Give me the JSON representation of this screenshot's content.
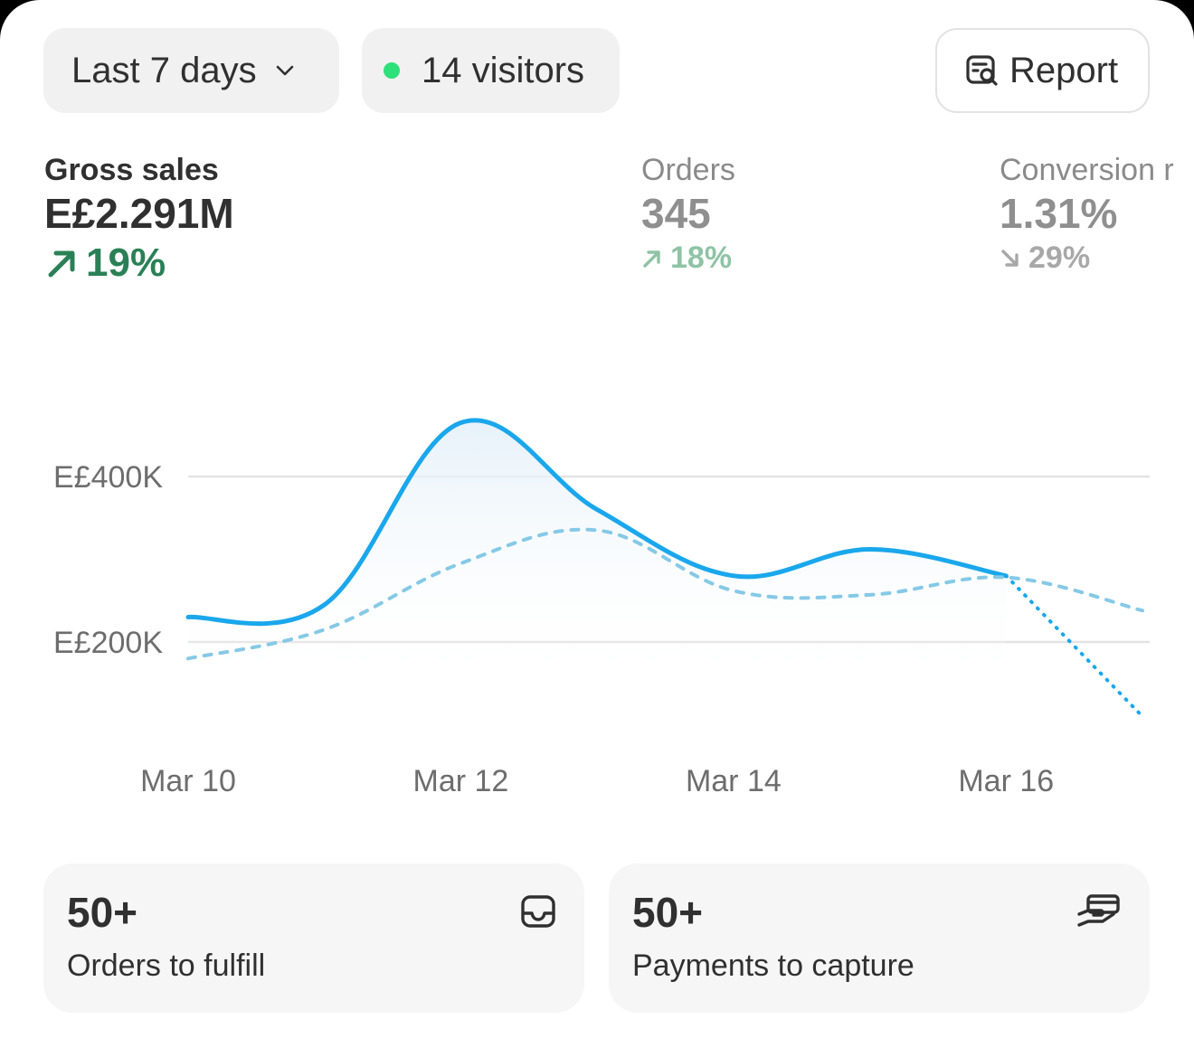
{
  "toolbar": {
    "date_range_label": "Last 7 days",
    "visitors_label": "14 visitors",
    "report_label": "Report",
    "live_dot_color": "#2ee07a"
  },
  "metrics": [
    {
      "label": "Gross sales",
      "value": "E£2.291M",
      "change": "19%",
      "direction": "up"
    },
    {
      "label": "Orders",
      "value": "345",
      "change": "18%",
      "direction": "up"
    },
    {
      "label": "Conversion r",
      "value": "1.31%",
      "change": "29%",
      "direction": "down"
    }
  ],
  "chart_data": {
    "type": "line",
    "x": [
      "Mar 10",
      "Mar 11",
      "Mar 12",
      "Mar 13",
      "Mar 14",
      "Mar 15",
      "Mar 16",
      "Mar 17"
    ],
    "x_tick_labels": [
      "Mar 10",
      "Mar 12",
      "Mar 14",
      "Mar 16"
    ],
    "y_tick_labels": [
      "E£400K",
      "E£200K"
    ],
    "y_ticks": [
      400000,
      200000
    ],
    "ylim": [
      50000,
      600000
    ],
    "grid": true,
    "series": [
      {
        "style": "solid",
        "color": "#1aa7ec",
        "values": [
          230000,
          245000,
          465000,
          360000,
          280000,
          312000,
          280000,
          null
        ]
      },
      {
        "style": "dotted-projection",
        "color": "#1aa7ec",
        "values": [
          null,
          null,
          null,
          null,
          null,
          null,
          280000,
          110000
        ]
      },
      {
        "style": "dashed-comparison",
        "color": "#86c9e6",
        "values": [
          180000,
          215000,
          295000,
          335000,
          262000,
          257000,
          278000,
          238000
        ]
      }
    ]
  },
  "tiles": [
    {
      "count": "50+",
      "label": "Orders to fulfill",
      "icon": "inbox-icon"
    },
    {
      "count": "50+",
      "label": "Payments to capture",
      "icon": "payment-hand-icon"
    }
  ]
}
